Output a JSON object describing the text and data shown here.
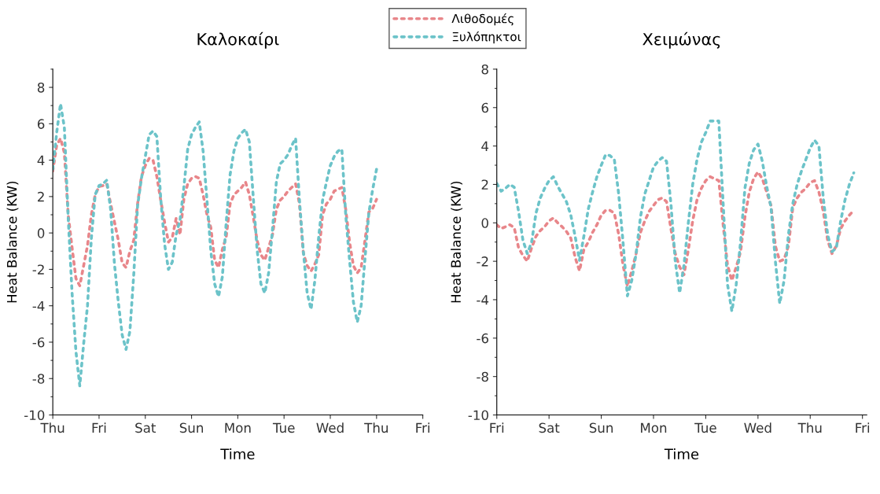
{
  "chart_data": [
    {
      "type": "line",
      "title": "Καλοκαίρι",
      "xlabel": "Time",
      "ylabel": "Heat Balance (KW)",
      "legend": "top",
      "line_style": "dotted",
      "marker": "none",
      "grid": false,
      "categories": [
        "Thu",
        null,
        null,
        null,
        null,
        null,
        null,
        null,
        null,
        null,
        null,
        null,
        "Fri",
        null,
        null,
        null,
        null,
        null,
        null,
        null,
        null,
        null,
        null,
        null,
        "Sat",
        null,
        null,
        null,
        null,
        null,
        null,
        null,
        null,
        null,
        null,
        null,
        "Sun",
        null,
        null,
        null,
        null,
        null,
        null,
        null,
        null,
        null,
        null,
        null,
        "Mon",
        null,
        null,
        null,
        null,
        null,
        null,
        null,
        null,
        null,
        null,
        null,
        "Tue",
        null,
        null,
        null,
        null,
        null,
        null,
        null,
        null,
        null,
        null,
        null,
        "Wed",
        null,
        null,
        null,
        null,
        null,
        null,
        null,
        null,
        null,
        null,
        null,
        "Thu",
        null,
        null,
        null,
        null,
        null,
        null,
        null,
        null,
        null,
        null,
        null,
        "Fri"
      ],
      "ylim": [
        -10,
        9
      ],
      "yticks": [
        -10,
        -8,
        -6,
        -4,
        -2,
        0,
        2,
        4,
        6,
        8
      ],
      "series": [
        {
          "name": "Λιθοδομές",
          "color": "#e8868a",
          "values": [
            3.4,
            4.8,
            5.2,
            4.4,
            1.0,
            -0.8,
            -2.5,
            -2.9,
            -1.8,
            -0.7,
            1.0,
            2.1,
            2.55,
            2.6,
            2.7,
            1.6,
            0.6,
            -0.4,
            -1.65,
            -1.9,
            -1.0,
            -0.4,
            1.6,
            3.1,
            3.7,
            4.1,
            4.0,
            3.1,
            1.8,
            0.6,
            -0.5,
            -0.25,
            0.8,
            -0.1,
            1.85,
            2.7,
            3.0,
            3.1,
            3.0,
            2.1,
            1.0,
            0.3,
            -1.5,
            -1.9,
            -0.9,
            -0.2,
            1.6,
            2.1,
            2.3,
            2.5,
            2.8,
            2.1,
            0.9,
            -0.4,
            -1.2,
            -1.5,
            -0.8,
            -0.1,
            1.3,
            1.8,
            2.0,
            2.3,
            2.5,
            2.7,
            1.6,
            -1.1,
            -1.8,
            -2.1,
            -1.7,
            -1.2,
            1.0,
            1.6,
            1.85,
            2.3,
            2.4,
            2.5,
            1.3,
            -0.5,
            -1.8,
            -2.2,
            -1.9,
            -0.4,
            1.15,
            1.35,
            1.85,
            null,
            null,
            null,
            null,
            null,
            null,
            null,
            null,
            null,
            null,
            null,
            null
          ]
        },
        {
          "name": "Ξυλόπηκτοι",
          "color": "#6cc3c9",
          "values": [
            3.5,
            5.5,
            7.1,
            5.8,
            0.8,
            -3.3,
            -6.5,
            -8.4,
            -6.1,
            -4.0,
            -0.3,
            2.1,
            2.6,
            2.7,
            2.9,
            1.3,
            -1.7,
            -3.8,
            -5.6,
            -6.4,
            -5.4,
            -2.3,
            1.5,
            3.0,
            4.2,
            5.4,
            5.6,
            5.3,
            1.9,
            -0.6,
            -2.0,
            -1.6,
            -0.1,
            0.7,
            2.5,
            4.6,
            5.4,
            5.8,
            6.1,
            4.5,
            1.8,
            -1.0,
            -2.8,
            -3.5,
            -2.4,
            0.6,
            3.2,
            4.5,
            5.2,
            5.5,
            5.7,
            5.0,
            2.0,
            -0.9,
            -2.8,
            -3.3,
            -2.2,
            0.2,
            2.8,
            3.8,
            4.0,
            4.3,
            4.8,
            5.2,
            1.8,
            -1.0,
            -3.3,
            -4.2,
            -2.6,
            -0.2,
            1.8,
            2.8,
            3.7,
            4.2,
            4.5,
            4.6,
            1.0,
            -1.5,
            -3.8,
            -4.9,
            -4.0,
            -1.4,
            1.1,
            2.4,
            3.5,
            null,
            null,
            null,
            null,
            null,
            null,
            null,
            null,
            null,
            null,
            null,
            null
          ]
        }
      ]
    },
    {
      "type": "line",
      "title": "Χειμώνας",
      "xlabel": "Time",
      "ylabel": "Heat Balance (KW)",
      "line_style": "dotted",
      "marker": "none",
      "grid": false,
      "categories": [
        "Fri",
        null,
        null,
        null,
        null,
        null,
        null,
        null,
        null,
        null,
        null,
        null,
        "Sat",
        null,
        null,
        null,
        null,
        null,
        null,
        null,
        null,
        null,
        null,
        null,
        "Sun",
        null,
        null,
        null,
        null,
        null,
        null,
        null,
        null,
        null,
        null,
        null,
        "Mon",
        null,
        null,
        null,
        null,
        null,
        null,
        null,
        null,
        null,
        null,
        null,
        "Tue",
        null,
        null,
        null,
        null,
        null,
        null,
        null,
        null,
        null,
        null,
        null,
        "Wed",
        null,
        null,
        null,
        null,
        null,
        null,
        null,
        null,
        null,
        null,
        null,
        "Thu",
        null,
        null,
        null,
        null,
        null,
        null,
        null,
        null,
        null,
        null,
        null,
        "Fri",
        null
      ],
      "ylim": [
        -10,
        8
      ],
      "yticks": [
        -10,
        -8,
        -6,
        -4,
        -2,
        0,
        2,
        4,
        6,
        8
      ],
      "series": [
        {
          "color": "#e8868a",
          "values": [
            -0.1,
            -0.3,
            -0.2,
            -0.1,
            -0.25,
            -1.3,
            -1.7,
            -2.0,
            -1.3,
            -0.7,
            -0.4,
            -0.2,
            0.1,
            0.25,
            0.0,
            -0.2,
            -0.45,
            -0.8,
            -1.8,
            -2.5,
            -1.4,
            -1.0,
            -0.5,
            -0.1,
            0.4,
            0.65,
            0.65,
            0.5,
            -0.6,
            -2.2,
            -3.3,
            -2.5,
            -1.6,
            -0.5,
            0.1,
            0.6,
            0.9,
            1.2,
            1.3,
            1.1,
            -0.3,
            -1.6,
            -2.3,
            -2.7,
            -1.4,
            0.1,
            1.2,
            1.8,
            2.2,
            2.4,
            2.3,
            2.2,
            -0.1,
            -2.2,
            -3.0,
            -2.3,
            -1.5,
            0.3,
            1.6,
            2.3,
            2.65,
            2.3,
            1.6,
            0.9,
            -1.2,
            -2.0,
            -1.9,
            -1.2,
            0.8,
            1.3,
            1.6,
            1.8,
            2.1,
            2.2,
            1.6,
            0.6,
            -0.9,
            -1.6,
            -1.2,
            -0.3,
            0.1,
            0.4,
            0.65,
            null,
            null,
            null
          ]
        },
        {
          "color": "#6cc3c9",
          "values": [
            2.05,
            1.65,
            1.8,
            2.0,
            1.85,
            0.6,
            -0.9,
            -1.6,
            -1.0,
            0.5,
            1.3,
            1.8,
            2.2,
            2.4,
            1.9,
            1.5,
            1.1,
            0.4,
            -0.7,
            -1.95,
            -0.7,
            0.7,
            1.6,
            2.4,
            3.0,
            3.55,
            3.5,
            3.3,
            1.5,
            -1.0,
            -3.8,
            -3.0,
            -1.6,
            0.3,
            1.5,
            2.2,
            2.9,
            3.2,
            3.4,
            3.2,
            1.0,
            -2.0,
            -3.65,
            -2.2,
            0.0,
            2.0,
            3.3,
            4.2,
            4.7,
            5.3,
            5.3,
            5.3,
            1.0,
            -3.2,
            -4.6,
            -3.2,
            -1.0,
            1.8,
            3.1,
            3.8,
            4.1,
            3.2,
            1.9,
            0.8,
            -2.0,
            -4.2,
            -3.0,
            -0.6,
            1.0,
            2.0,
            2.7,
            3.3,
            3.9,
            4.3,
            4.0,
            1.3,
            -0.6,
            -1.5,
            -1.3,
            0.1,
            1.2,
            2.0,
            2.6,
            null,
            null,
            null
          ]
        }
      ]
    }
  ]
}
